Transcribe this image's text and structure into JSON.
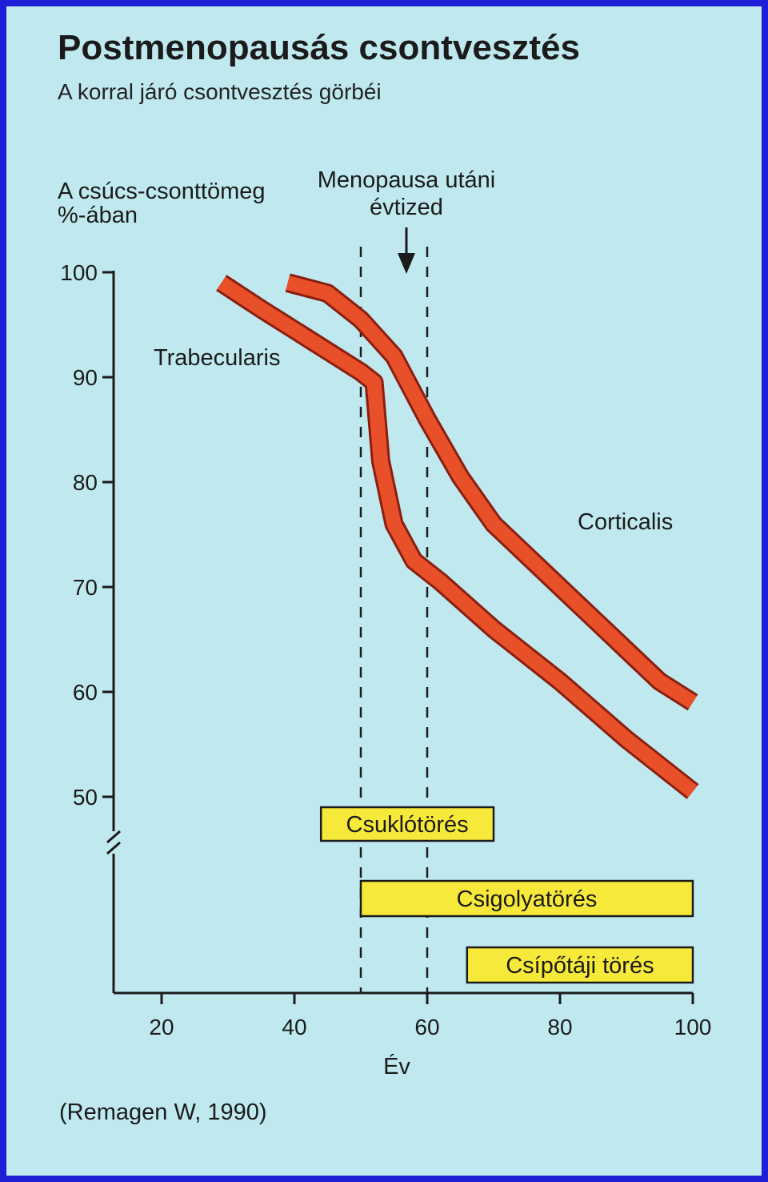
{
  "title": "Postmenopausás csontvesztés",
  "subtitle": "A korral járó csontvesztés görbéi",
  "ylabel_line1": "A csúcs-csonttömeg",
  "ylabel_line2": "%-ában",
  "xlabel": "Év",
  "annotation_line1": "Menopausa utáni",
  "annotation_line2": "évtized",
  "source": "(Remagen W, 1990)",
  "colors": {
    "background": "#bfe9ef",
    "border": "#1f1fd8",
    "curve_fill": "#e8502a",
    "curve_outline": "#8a1f10",
    "bar_fill": "#f7e93a",
    "text": "#1b1b1b"
  },
  "chart_data": {
    "type": "line",
    "title": "Postmenopausás csontvesztés",
    "subtitle": "A korral járó csontvesztés görbéi",
    "xlabel": "Év",
    "ylabel": "A csúcs-csonttömeg %-ában",
    "xlim": [
      20,
      100
    ],
    "ylim": [
      50,
      100
    ],
    "x_ticks": [
      20,
      40,
      60,
      80,
      100
    ],
    "y_ticks": [
      50,
      60,
      70,
      80,
      90,
      100
    ],
    "grid": false,
    "series": [
      {
        "name": "Trabecularis",
        "x": [
          29,
          35,
          40,
          45,
          50,
          52,
          53,
          55,
          58,
          62,
          70,
          80,
          90,
          100
        ],
        "y": [
          99,
          96.5,
          94.5,
          92.5,
          90.5,
          89.5,
          82,
          76,
          72.5,
          70.5,
          66,
          61,
          55.5,
          50.5
        ]
      },
      {
        "name": "Corticalis",
        "x": [
          39,
          45,
          50,
          55,
          60,
          65,
          70,
          80,
          90,
          95,
          100
        ],
        "y": [
          99,
          98,
          95.5,
          92,
          86,
          80.5,
          76,
          70,
          64,
          61,
          59
        ]
      }
    ],
    "reference_lines": {
      "x": [
        50,
        60
      ]
    },
    "ranges": [
      {
        "label": "Csuklótörés",
        "start": 44,
        "end": 70
      },
      {
        "label": "Csigolyatörés",
        "start": 50,
        "end": 100
      },
      {
        "label": "Csípőtáji törés",
        "start": 66,
        "end": 100
      }
    ]
  }
}
